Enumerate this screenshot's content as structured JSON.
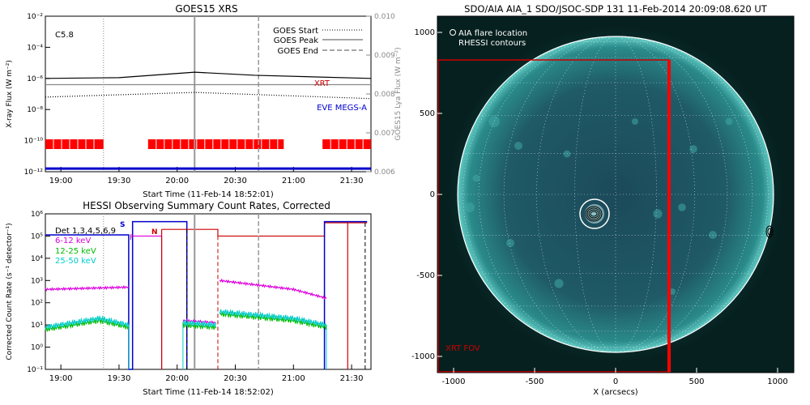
{
  "chart_data": [
    {
      "type": "line",
      "title": "GOES15 XRS",
      "xlabel": "Start Time (11-Feb-14 18:52:01)",
      "ylabel": "X-ray Flux (W m⁻²)",
      "ylabel_right": "GOES15 Lya Flux (W m⁻²)",
      "xlim": [
        "18:52",
        "21:40"
      ],
      "xticks": [
        "19:00",
        "19:30",
        "20:00",
        "20:30",
        "21:00",
        "21:30"
      ],
      "ylim_log": [
        -12,
        -2
      ],
      "yticks_left": [
        "10⁻²",
        "10⁻⁴",
        "10⁻⁶",
        "10⁻⁸",
        "10⁻¹⁰",
        "10⁻¹²"
      ],
      "ylim_right": [
        0.006,
        0.01
      ],
      "yticks_right": [
        "0.010",
        "0.009",
        "0.008",
        "0.007",
        "0.006"
      ],
      "class_label": "C5.8",
      "legend": [
        "GOES Start",
        "GOES Peak",
        "GOES End"
      ],
      "markers": {
        "start": "19:22",
        "peak": "20:09",
        "end": "20:42"
      },
      "labels": {
        "xrt": "XRT",
        "eve": "EVE MEGS-A"
      },
      "series": [
        {
          "name": "XRT",
          "x": [
            "18:52",
            "19:30",
            "20:09",
            "20:40",
            "21:40"
          ],
          "log_y": [
            -6.0,
            -5.95,
            -5.6,
            -5.8,
            -6.0
          ],
          "color": "#000000"
        },
        {
          "name": "Lya",
          "x": [
            "18:52",
            "21:40"
          ],
          "log_y": [
            -6.4,
            -6.4
          ],
          "color": "#888888"
        },
        {
          "name": "dotted",
          "x": [
            "18:52",
            "20:09",
            "21:40"
          ],
          "log_y": [
            -7.2,
            -6.9,
            -7.3
          ],
          "color": "#000000"
        },
        {
          "name": "EVE MEGS-A",
          "x": [
            "18:52",
            "21:40"
          ],
          "log_y": [
            -11.8,
            -11.8
          ],
          "color": "#0000cc"
        }
      ],
      "red_bars": [
        [
          "18:52",
          "19:22"
        ],
        [
          "19:45",
          "20:55"
        ],
        [
          "21:15",
          "21:40"
        ]
      ]
    },
    {
      "type": "line",
      "title": "HESSI Observing Summary Count Rates, Corrected",
      "xlabel": "Start Time (11-Feb-14 18:52:02)",
      "ylabel": "Corrected Count Rate (s⁻¹ detector⁻¹)",
      "xlim": [
        "18:52",
        "21:40"
      ],
      "xticks": [
        "19:00",
        "19:30",
        "20:00",
        "20:30",
        "21:00",
        "21:30"
      ],
      "ylim_log": [
        -1,
        6
      ],
      "yticks": [
        "10⁶",
        "10⁵",
        "10⁴",
        "10³",
        "10²",
        "10¹",
        "10⁰",
        "10⁻¹"
      ],
      "legend": [
        {
          "name": "Det 1,3,4,5,6,9",
          "color": "#000000"
        },
        {
          "name": "6-12 keV",
          "color": "#dd00dd"
        },
        {
          "name": "12-25 keV",
          "color": "#00bb00"
        },
        {
          "name": "25-50 keV",
          "color": "#00cccc"
        }
      ],
      "flags": {
        "s": "S",
        "f": "F",
        "n": "N"
      },
      "series": [
        {
          "name": "6-12 keV",
          "segments": [
            [
              [
                "18:52",
                2.6
              ],
              [
                "19:35",
                2.7
              ]
            ],
            [
              [
                "20:03",
                1.2
              ],
              [
                "20:20",
                1.1
              ]
            ],
            [
              [
                "20:22",
                3.0
              ],
              [
                "21:00",
                2.6
              ],
              [
                "21:17",
                2.2
              ]
            ]
          ]
        },
        {
          "name": "12-25 keV",
          "segments": [
            [
              [
                "18:52",
                0.8
              ],
              [
                "19:20",
                1.2
              ],
              [
                "19:35",
                0.9
              ]
            ],
            [
              [
                "20:03",
                1.0
              ],
              [
                "20:20",
                0.9
              ]
            ],
            [
              [
                "20:22",
                1.5
              ],
              [
                "21:00",
                1.2
              ],
              [
                "21:17",
                0.9
              ]
            ]
          ]
        },
        {
          "name": "25-50 keV",
          "segments": [
            [
              [
                "18:52",
                0.9
              ],
              [
                "19:20",
                1.3
              ],
              [
                "19:35",
                1.0
              ]
            ],
            [
              [
                "20:03",
                1.1
              ],
              [
                "20:20",
                1.0
              ]
            ],
            [
              [
                "20:22",
                1.6
              ],
              [
                "21:00",
                1.3
              ],
              [
                "21:17",
                1.0
              ]
            ]
          ]
        }
      ]
    },
    {
      "type": "image",
      "title": "SDO/AIA AIA_1 SDO/JSOC-SDP 131 11-Feb-2014 20:09:08.620 UT",
      "xlabel": "X (arcsecs)",
      "xlim": [
        -1100,
        1100
      ],
      "ylim": [
        -1100,
        1100
      ],
      "xticks": [
        "-1000",
        "-500",
        "0",
        "500",
        "1000"
      ],
      "yticks": [
        "1000",
        "500",
        "0",
        "-500",
        "-1000"
      ],
      "legend": [
        "AIA flare location",
        "RHESSI contours"
      ],
      "fov_label": "XRT FOV",
      "flare_location": [
        -130,
        -120
      ],
      "fov_box": {
        "x": [
          -1100,
          330
        ],
        "y": [
          -1100,
          830
        ]
      },
      "limb_contour": [
        950,
        -230
      ]
    }
  ]
}
